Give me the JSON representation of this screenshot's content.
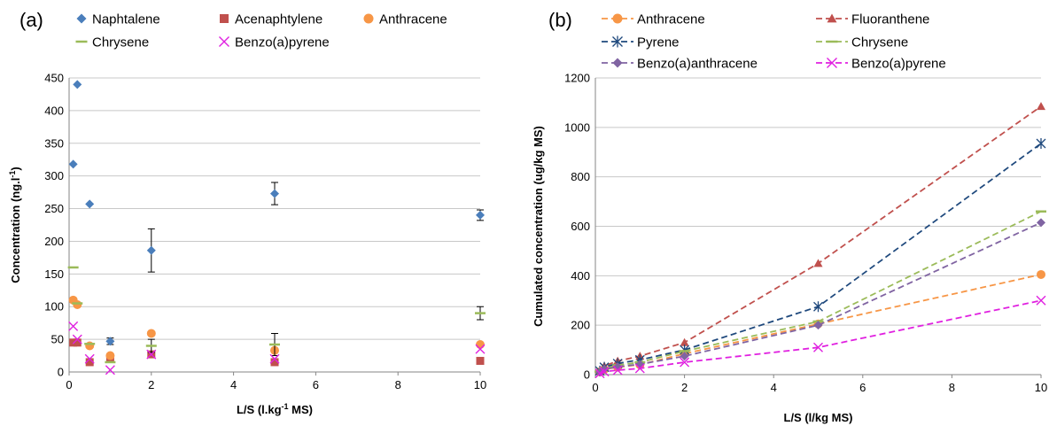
{
  "chart_data": [
    {
      "panel_label": "(a)",
      "type": "scatter",
      "xlabel": "L/S (l.kg",
      "xlabel_sup": "-1",
      "xlabel_end": " MS)",
      "ylabel": "Concentration (ng.l",
      "ylabel_sup": "-1",
      "ylabel_end": ")",
      "xlim": [
        0,
        10
      ],
      "ylim": [
        0,
        450
      ],
      "xticks": [
        "0",
        "2",
        "4",
        "6",
        "8",
        "10"
      ],
      "yticks": [
        "0",
        "50",
        "100",
        "150",
        "200",
        "250",
        "300",
        "350",
        "400",
        "450"
      ],
      "grid": "horizontal",
      "legend_position": "top",
      "series": [
        {
          "name": "Naphtalene",
          "color": "#4a7ebb",
          "marker": "diamond",
          "x": [
            0.1,
            0.2,
            0.5,
            1,
            2,
            5,
            10
          ],
          "y": [
            318,
            440,
            257,
            47,
            186,
            273,
            240
          ],
          "err": [
            0,
            0,
            0,
            5,
            33,
            17,
            8
          ]
        },
        {
          "name": "Acenaphtylene",
          "color": "#c0504d",
          "marker": "square",
          "x": [
            0.1,
            0.2,
            0.5,
            1,
            2,
            5,
            10
          ],
          "y": [
            45,
            45,
            15,
            20,
            27,
            15,
            17
          ],
          "err": [
            0,
            0,
            0,
            0,
            0,
            0,
            0
          ]
        },
        {
          "name": "Anthracene",
          "color": "#f79646",
          "marker": "circle",
          "x": [
            0.1,
            0.2,
            0.5,
            1,
            2,
            5,
            10
          ],
          "y": [
            110,
            103,
            40,
            25,
            59,
            33,
            42
          ],
          "err": [
            0,
            0,
            0,
            0,
            0,
            0,
            0
          ]
        },
        {
          "name": "Chrysene",
          "color": "#9bbb59",
          "marker": "dash",
          "x": [
            0.1,
            0.2,
            0.5,
            1,
            2,
            5,
            10
          ],
          "y": [
            160,
            105,
            43,
            15,
            40,
            42,
            90
          ],
          "err": [
            0,
            0,
            0,
            0,
            10,
            17,
            10
          ]
        },
        {
          "name": "Benzo(a)pyrene",
          "color": "#e020e0",
          "marker": "x",
          "x": [
            0.1,
            0.2,
            0.5,
            1,
            2,
            5,
            10
          ],
          "y": [
            70,
            50,
            20,
            3,
            27,
            20,
            35
          ],
          "err": [
            0,
            0,
            0,
            0,
            0,
            0,
            0
          ]
        }
      ]
    },
    {
      "panel_label": "(b)",
      "type": "line",
      "xlabel": "L/S (l/kg MS)",
      "ylabel": "Cumulated concentration (ug/kg MS)",
      "xlim": [
        0,
        10
      ],
      "ylim": [
        0,
        1200
      ],
      "xticks": [
        "0",
        "2",
        "4",
        "6",
        "8",
        "10"
      ],
      "yticks": [
        "0",
        "200",
        "400",
        "600",
        "800",
        "1000",
        "1200"
      ],
      "grid": "horizontal",
      "legend_position": "top",
      "series": [
        {
          "name": "Anthracene",
          "color": "#f79646",
          "marker": "circle",
          "x": [
            0.1,
            0.2,
            0.5,
            1,
            2,
            5,
            10
          ],
          "y": [
            11,
            21,
            30,
            40,
            85,
            205,
            405
          ]
        },
        {
          "name": "Fluoranthene",
          "color": "#c0504d",
          "marker": "triangle",
          "x": [
            0.1,
            0.2,
            0.5,
            1,
            2,
            5,
            10
          ],
          "y": [
            15,
            35,
            55,
            75,
            130,
            450,
            1085
          ]
        },
        {
          "name": "Pyrene",
          "color": "#1f497d",
          "marker": "asterisk",
          "x": [
            0.1,
            0.2,
            0.5,
            1,
            2,
            5,
            10
          ],
          "y": [
            15,
            30,
            45,
            60,
            100,
            275,
            935
          ]
        },
        {
          "name": "Chrysene",
          "color": "#9bbb59",
          "marker": "dash",
          "x": [
            0.1,
            0.2,
            0.5,
            1,
            2,
            5,
            10
          ],
          "y": [
            12,
            25,
            38,
            50,
            95,
            215,
            660
          ]
        },
        {
          "name": "Benzo(a)anthracene",
          "color": "#8064a2",
          "marker": "diamond",
          "x": [
            0.1,
            0.2,
            0.5,
            1,
            2,
            5,
            10
          ],
          "y": [
            10,
            22,
            32,
            42,
            75,
            200,
            615
          ]
        },
        {
          "name": "Benzo(a)pyrene",
          "color": "#e020e0",
          "marker": "x",
          "x": [
            0.1,
            0.2,
            0.5,
            1,
            2,
            5,
            10
          ],
          "y": [
            5,
            12,
            18,
            25,
            50,
            110,
            300
          ]
        }
      ]
    }
  ]
}
